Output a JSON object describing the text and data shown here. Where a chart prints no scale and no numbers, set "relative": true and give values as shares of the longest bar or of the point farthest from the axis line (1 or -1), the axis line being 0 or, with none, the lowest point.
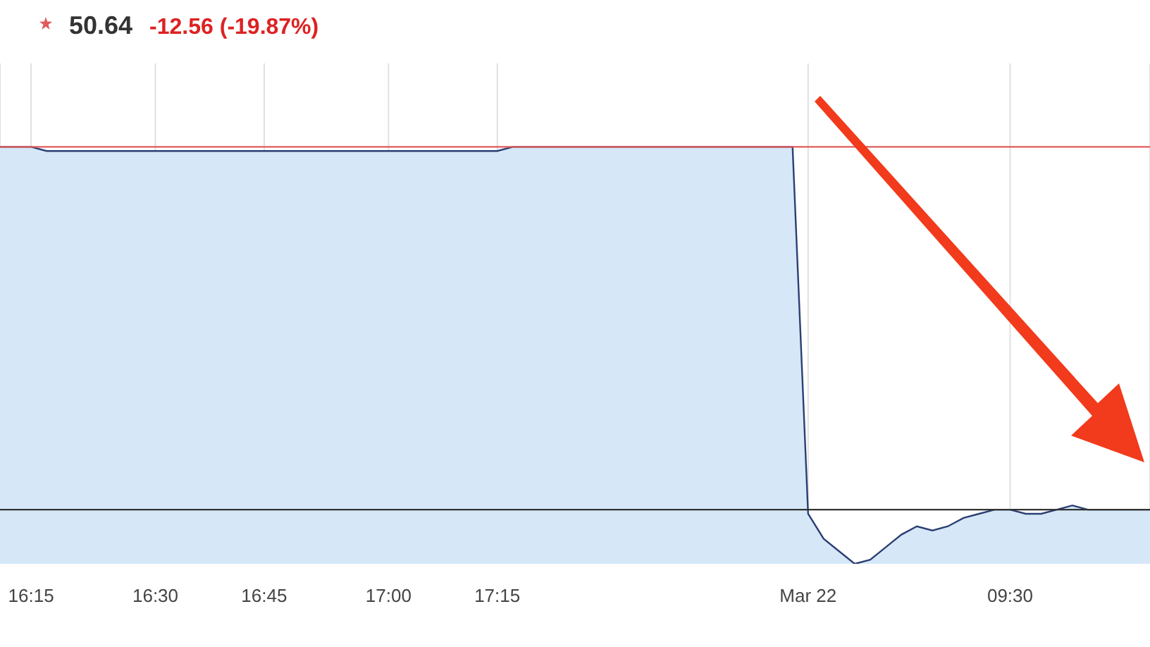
{
  "chart_data": {
    "type": "area",
    "title": "50.64",
    "subtitle": "-12.56 (-19.87%)",
    "relative": true,
    "categories": [
      null,
      null,
      "16:15",
      null,
      null,
      null,
      null,
      null,
      null,
      null,
      "16:30",
      null,
      null,
      null,
      null,
      null,
      null,
      "16:45",
      null,
      null,
      null,
      null,
      null,
      null,
      null,
      "17:00",
      null,
      null,
      null,
      null,
      null,
      null,
      "17:15",
      null,
      null,
      null,
      null,
      null,
      null,
      null,
      null,
      null,
      null,
      null,
      null,
      null,
      null,
      null,
      null,
      null,
      null,
      null,
      "Mar 22",
      null,
      null,
      null,
      null,
      null,
      null,
      null,
      null,
      null,
      null,
      null,
      null,
      "09:30",
      null,
      null,
      null,
      null,
      null,
      null,
      null,
      null,
      null
    ],
    "series": [
      {
        "color": "#2b3f73",
        "values": [
          1,
          1,
          1,
          0.99,
          0.99,
          0.99,
          0.99,
          0.99,
          0.99,
          0.99,
          0.99,
          0.99,
          0.99,
          0.99,
          0.99,
          0.99,
          0.99,
          0.99,
          0.99,
          0.99,
          0.99,
          0.99,
          0.99,
          0.99,
          0.99,
          0.99,
          0.99,
          0.99,
          0.99,
          0.99,
          0.99,
          0.99,
          0.99,
          1,
          1,
          1,
          1,
          1,
          1,
          1,
          1,
          1,
          1,
          1,
          1,
          1,
          1,
          1,
          1,
          1,
          1,
          1,
          0.12,
          0.06,
          0.03,
          0,
          0.01,
          0.04,
          0.07,
          0.09,
          0.08,
          0.09,
          0.11,
          0.12,
          0.13,
          0.13,
          0.12,
          0.12,
          0.13,
          0.14,
          0.13,
          0.13,
          0.13,
          0.13,
          0.13
        ]
      }
    ],
    "ref_lines": [
      {
        "axis": "y",
        "value": 1,
        "color": "#e05a5a"
      },
      {
        "axis": "y",
        "value": 0.13,
        "color": "#333333"
      }
    ],
    "grid": "x"
  }
}
